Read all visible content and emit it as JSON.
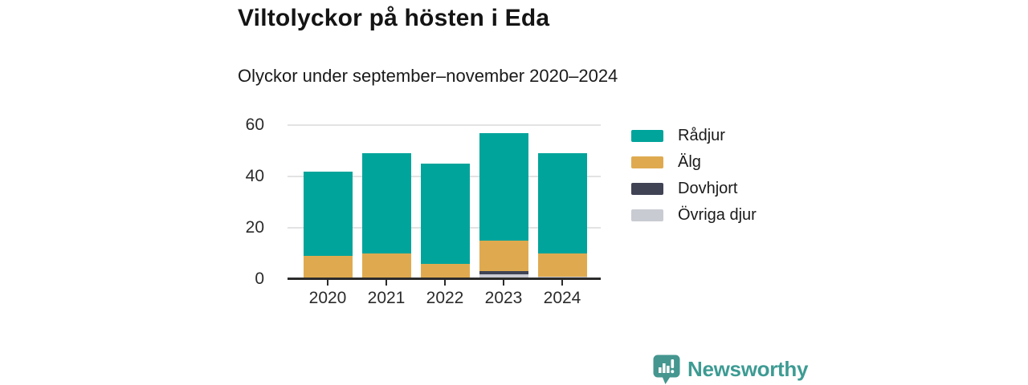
{
  "header": {
    "title": "Viltolyckor på hösten i Eda",
    "subtitle": "Olyckor under september–november 2020–2024"
  },
  "chart_data": {
    "type": "bar",
    "stacked": true,
    "title": "Viltolyckor på hösten i Eda",
    "subtitle": "Olyckor under september–november 2020–2024",
    "categories": [
      "2020",
      "2021",
      "2022",
      "2023",
      "2024"
    ],
    "series": [
      {
        "name": "Rådjur",
        "color": "#00A49B",
        "values": [
          33,
          39,
          39,
          42,
          39
        ]
      },
      {
        "name": "Älg",
        "color": "#DFAA4F",
        "values": [
          9,
          10,
          6,
          12,
          9
        ]
      },
      {
        "name": "Dovhjort",
        "color": "#3F4354",
        "values": [
          0,
          0,
          0,
          1,
          0
        ]
      },
      {
        "name": "Övriga djur",
        "color": "#C9CBD3",
        "values": [
          0,
          0,
          0,
          2,
          1
        ]
      }
    ],
    "totals": [
      42,
      49,
      45,
      57,
      49
    ],
    "xlabel": "",
    "ylabel": "",
    "ylim": [
      0,
      60
    ],
    "yticks": [
      0,
      20,
      40,
      60
    ],
    "grid": true,
    "legend_position": "right",
    "stack_order_bottom_to_top": [
      "Övriga djur",
      "Dovhjort",
      "Älg",
      "Rådjur"
    ]
  },
  "colors": {
    "axis": "#2b2b2b",
    "gridline": "#e3e3e3",
    "text": "#1a1a1a"
  },
  "branding": {
    "logo_text": "Newsworthy",
    "logo_color": "#3D9B93"
  }
}
